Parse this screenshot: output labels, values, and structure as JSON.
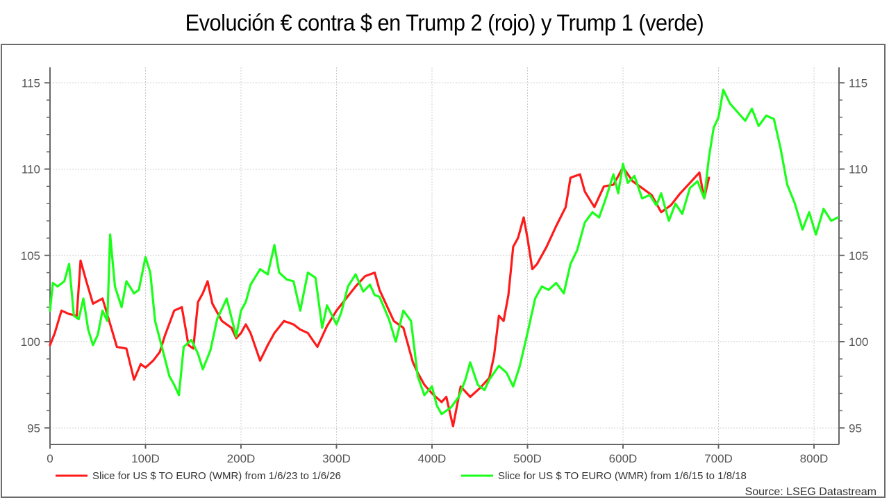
{
  "title": "Evolución € contra $ en Trump 2 (rojo) y Trump 1 (verde)",
  "source": "Source: LSEG Datastream",
  "colors": {
    "red_series": "#ff1a1a",
    "green_series": "#1aff1a",
    "axis": "#666666",
    "grid": "#cccccc"
  },
  "chart_data": {
    "type": "line",
    "title": "Evolución € contra $ en Trump 2 (rojo) y Trump 1 (verde)",
    "xlabel": "",
    "ylabel": "",
    "x_unit": "days",
    "xlim": [
      0,
      827
    ],
    "ylim": [
      94,
      116
    ],
    "x_ticks": [
      "0",
      "100D",
      "200D",
      "300D",
      "400D",
      "500D",
      "600D",
      "700D",
      "800D"
    ],
    "x_tick_values": [
      0,
      100,
      200,
      300,
      400,
      500,
      600,
      700,
      800
    ],
    "y_ticks": [
      "95",
      "100",
      "105",
      "110",
      "115"
    ],
    "y_tick_values": [
      95,
      100,
      105,
      110,
      115
    ],
    "y_axis_both_sides": true,
    "grid": true,
    "legend_position": "bottom",
    "series": [
      {
        "name": "Slice for US $ TO EURO (WMR) from 1/6/23 to 1/6/26",
        "color": "#ff1a1a",
        "x": [
          0,
          5,
          12,
          20,
          28,
          32,
          38,
          45,
          55,
          62,
          70,
          80,
          88,
          95,
          100,
          108,
          115,
          120,
          130,
          138,
          145,
          150,
          155,
          160,
          165,
          170,
          180,
          190,
          195,
          200,
          205,
          210,
          220,
          228,
          235,
          245,
          255,
          262,
          270,
          280,
          290,
          300,
          310,
          320,
          330,
          340,
          345,
          350,
          360,
          370,
          380,
          385,
          392,
          400,
          410,
          415,
          422,
          430,
          440,
          450,
          460,
          465,
          470,
          475,
          480,
          485,
          490,
          496,
          500,
          505,
          510,
          520,
          530,
          540,
          545,
          555,
          560,
          570,
          580,
          590,
          600,
          610,
          620,
          630,
          640,
          650,
          660,
          670,
          680,
          685,
          690
        ],
        "values": [
          99.8,
          100.5,
          101.8,
          101.6,
          101.5,
          104.7,
          103.5,
          102.2,
          102.5,
          101.2,
          99.7,
          99.6,
          97.8,
          98.7,
          98.5,
          98.9,
          99.4,
          100.3,
          101.8,
          102.0,
          99.8,
          99.6,
          102.3,
          102.8,
          103.5,
          102.2,
          101.2,
          100.8,
          100.2,
          100.5,
          101.0,
          100.5,
          98.9,
          99.8,
          100.5,
          101.2,
          101.0,
          100.7,
          100.5,
          99.7,
          100.9,
          101.8,
          102.5,
          103.2,
          103.8,
          104.0,
          103.0,
          102.4,
          101.2,
          100.8,
          98.8,
          98.2,
          97.5,
          97.0,
          96.5,
          96.8,
          95.1,
          97.4,
          96.8,
          97.3,
          97.9,
          99.2,
          101.5,
          101.2,
          102.7,
          105.5,
          106.0,
          107.2,
          106.0,
          104.2,
          104.5,
          105.5,
          106.7,
          107.8,
          109.5,
          109.7,
          108.7,
          107.8,
          109.0,
          109.1,
          110.1,
          109.3,
          108.9,
          108.5,
          107.5,
          107.9,
          108.6,
          109.2,
          109.8,
          108.3,
          109.5
        ]
      },
      {
        "name": "Slice for US $ TO EURO (WMR) from 1/6/15 to 1/8/18",
        "color": "#1aff1a",
        "x": [
          0,
          3,
          8,
          15,
          20,
          25,
          30,
          35,
          40,
          45,
          50,
          55,
          60,
          63,
          68,
          75,
          80,
          88,
          93,
          100,
          105,
          110,
          118,
          125,
          130,
          135,
          140,
          148,
          155,
          160,
          168,
          175,
          185,
          195,
          200,
          205,
          210,
          220,
          228,
          235,
          240,
          248,
          255,
          262,
          270,
          278,
          285,
          290,
          300,
          305,
          312,
          320,
          328,
          335,
          340,
          345,
          355,
          362,
          370,
          378,
          385,
          392,
          400,
          405,
          410,
          420,
          428,
          435,
          440,
          448,
          455,
          460,
          470,
          478,
          485,
          492,
          500,
          508,
          515,
          522,
          530,
          538,
          545,
          552,
          560,
          568,
          575,
          582,
          590,
          595,
          600,
          605,
          612,
          620,
          628,
          635,
          640,
          648,
          655,
          662,
          670,
          678,
          685,
          690,
          695,
          700,
          705,
          712,
          720,
          728,
          735,
          742,
          750,
          758,
          765,
          772,
          780,
          788,
          795,
          802,
          810,
          818,
          825
        ],
        "values": [
          101.8,
          103.4,
          103.2,
          103.5,
          104.5,
          101.5,
          101.3,
          102.5,
          100.7,
          99.8,
          100.4,
          101.8,
          101.2,
          106.2,
          103.2,
          102.0,
          103.5,
          102.8,
          103.0,
          104.9,
          104.0,
          101.2,
          99.5,
          98.0,
          97.5,
          96.9,
          99.7,
          100.1,
          99.3,
          98.4,
          99.5,
          101.3,
          102.5,
          100.3,
          101.8,
          102.3,
          103.3,
          104.2,
          103.9,
          105.6,
          104.0,
          103.6,
          103.5,
          101.8,
          104.0,
          103.7,
          100.8,
          102.1,
          101.0,
          101.7,
          103.2,
          103.9,
          102.9,
          103.3,
          102.7,
          102.6,
          101.3,
          100.0,
          101.8,
          101.2,
          98.0,
          96.9,
          97.4,
          96.3,
          95.8,
          96.2,
          96.8,
          97.8,
          98.8,
          97.5,
          97.2,
          97.8,
          98.6,
          98.2,
          97.4,
          98.6,
          100.5,
          102.5,
          103.2,
          103.0,
          103.4,
          102.8,
          104.5,
          105.3,
          106.9,
          107.5,
          107.2,
          108.3,
          109.7,
          108.6,
          110.3,
          109.2,
          109.6,
          108.3,
          108.5,
          107.9,
          108.6,
          107.0,
          108.0,
          107.4,
          108.9,
          109.3,
          108.3,
          110.7,
          112.4,
          113.0,
          114.6,
          113.8,
          113.3,
          112.8,
          113.5,
          112.5,
          113.1,
          112.9,
          111.2,
          109.1,
          108.0,
          106.5,
          107.5,
          106.2,
          107.7,
          107.0,
          107.2
        ]
      }
    ]
  }
}
